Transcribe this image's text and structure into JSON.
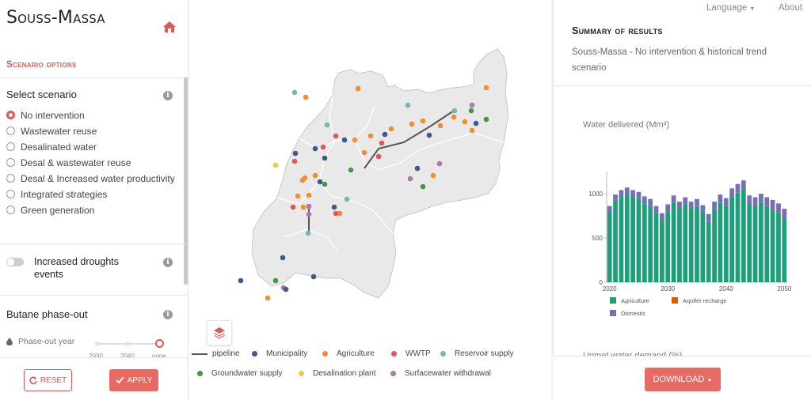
{
  "app": {
    "title": "Souss-Massa"
  },
  "left_panel": {
    "section_title": "Scenario options",
    "select_scenario": {
      "label": "Select scenario",
      "options": [
        {
          "label": "No intervention",
          "selected": true
        },
        {
          "label": "Wastewater reuse",
          "selected": false
        },
        {
          "label": "Desalinated water",
          "selected": false
        },
        {
          "label": "Desal & wastewater reuse",
          "selected": false
        },
        {
          "label": "Desal & Increased water productivity",
          "selected": false
        },
        {
          "label": "Integrated strategies",
          "selected": false
        },
        {
          "label": "Green generation",
          "selected": false
        }
      ]
    },
    "droughts": {
      "label": "Increased droughts events",
      "enabled": false
    },
    "butane": {
      "label": "Butane phase-out",
      "slider_label": "Phase-out year",
      "ticks": [
        "2030",
        "2040",
        "none"
      ],
      "selected": "none"
    },
    "reset_label": "RESET",
    "apply_label": "APPLY"
  },
  "navbar": {
    "language_label": "Language",
    "about_label": "About"
  },
  "map": {
    "legend": [
      {
        "label": "pipeline",
        "type": "line",
        "color": "#555555"
      },
      {
        "label": "Municipality",
        "type": "dot",
        "color": "#3d5a8a"
      },
      {
        "label": "Agriculture",
        "type": "dot",
        "color": "#f28e2c"
      },
      {
        "label": "WWTP",
        "type": "dot",
        "color": "#e15759"
      },
      {
        "label": "Reservoir supply",
        "type": "dot",
        "color": "#76b7b2"
      },
      {
        "label": "Groundwater supply",
        "type": "dot",
        "color": "#3e9a47"
      },
      {
        "label": "Desalination plant",
        "type": "dot",
        "color": "#edc948"
      },
      {
        "label": "Surfacewater withdrawal",
        "type": "dot",
        "color": "#a87c9f"
      }
    ]
  },
  "summary": {
    "title": "Summary of results",
    "subtitle": "Souss-Massa - No intervention & historical trend scenario",
    "unmet_label": "Unmet water demand (%)",
    "download_label": "DOWNLOAD"
  },
  "chart_data": {
    "type": "bar",
    "stacked": true,
    "title": "Water delivered (Mm³)",
    "x": [
      2020,
      2021,
      2022,
      2023,
      2024,
      2025,
      2026,
      2027,
      2028,
      2029,
      2030,
      2031,
      2032,
      2033,
      2034,
      2035,
      2036,
      2037,
      2038,
      2039,
      2040,
      2041,
      2042,
      2043,
      2044,
      2045,
      2046,
      2047,
      2048,
      2049,
      2050
    ],
    "x_ticks": [
      2020,
      2030,
      2040,
      2050
    ],
    "y_ticks": [
      0,
      500,
      1000
    ],
    "ylim": [
      0,
      1250
    ],
    "series": [
      {
        "name": "Agriculture",
        "color": "#1f9e7a",
        "values": [
          790,
          920,
          960,
          990,
          960,
          940,
          890,
          860,
          780,
          700,
          800,
          900,
          830,
          880,
          830,
          860,
          790,
          680,
          820,
          900,
          860,
          960,
          1010,
          1050,
          880,
          860,
          900,
          860,
          820,
          780,
          710
        ]
      },
      {
        "name": "Aquifer recharge",
        "color": "#d95f02",
        "values": [
          0,
          0,
          0,
          0,
          0,
          0,
          0,
          0,
          0,
          0,
          0,
          0,
          0,
          0,
          0,
          0,
          0,
          0,
          0,
          0,
          0,
          0,
          0,
          0,
          0,
          0,
          0,
          0,
          0,
          0,
          0
        ]
      },
      {
        "name": "Domestic",
        "color": "#7570b3",
        "values": [
          70,
          70,
          80,
          80,
          80,
          80,
          80,
          80,
          80,
          80,
          80,
          80,
          80,
          80,
          80,
          80,
          80,
          90,
          90,
          90,
          90,
          100,
          100,
          100,
          100,
          100,
          100,
          100,
          110,
          110,
          120
        ]
      }
    ],
    "legend_position": "bottom-left"
  }
}
